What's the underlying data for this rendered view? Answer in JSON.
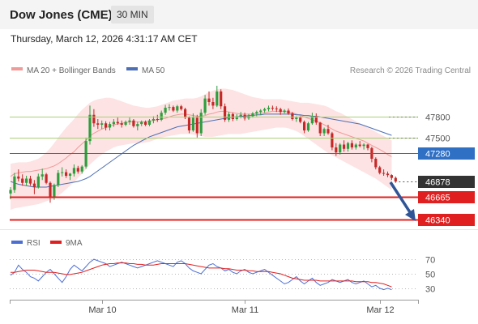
{
  "header": {
    "title": "Dow Jones (CME)",
    "timeframe": "30 MIN",
    "datetime": "Thursday, March 12, 2026 4:31:17 AM CET"
  },
  "legend": {
    "ma20_bb": "MA 20 + Bollinger Bands",
    "ma50": "MA 50",
    "credit": "Research © 2026 Trading Central",
    "rsi": "RSI",
    "rsi_ma": "9MA"
  },
  "colors": {
    "up": "#2e9e3e",
    "down": "#c62828",
    "ma20": "#f19a9a",
    "band_fill": "#fde3e3",
    "ma50": "#4d6fb5",
    "resistance": "#a9d17a",
    "pivot": "#2f6fc4",
    "support": "#e02020",
    "arrow": "#2f5597",
    "last_price_tag": "#333333"
  },
  "chart_data": {
    "type": "candlestick",
    "price_levels": [
      {
        "label": "47800",
        "value": 47800,
        "kind": "resistance"
      },
      {
        "label": "47500",
        "value": 47500,
        "kind": "resistance"
      },
      {
        "label": "47280",
        "value": 47280,
        "kind": "pivot"
      },
      {
        "label": "46878",
        "value": 46878,
        "kind": "last"
      },
      {
        "label": "46665",
        "value": 46665,
        "kind": "support"
      },
      {
        "label": "46340",
        "value": 46340,
        "kind": "support"
      }
    ],
    "price_range": [
      46240,
      48240
    ],
    "candles": [
      [
        46710,
        46800,
        46630,
        46760
      ],
      [
        46760,
        47000,
        46720,
        46950
      ],
      [
        46950,
        47050,
        46880,
        46920
      ],
      [
        46920,
        46980,
        46820,
        46860
      ],
      [
        46860,
        46960,
        46820,
        46920
      ],
      [
        46920,
        46960,
        46820,
        46850
      ],
      [
        46850,
        46900,
        46700,
        46800
      ],
      [
        46800,
        46990,
        46780,
        46950
      ],
      [
        46950,
        47060,
        46900,
        46980
      ],
      [
        46980,
        47000,
        46840,
        46860
      ],
      [
        46860,
        46880,
        46580,
        46650
      ],
      [
        46650,
        46850,
        46620,
        46830
      ],
      [
        46830,
        47040,
        46800,
        47000
      ],
      [
        47000,
        47080,
        46950,
        47010
      ],
      [
        47010,
        47050,
        46930,
        46960
      ],
      [
        46960,
        47000,
        46900,
        46990
      ],
      [
        46990,
        47120,
        46950,
        47070
      ],
      [
        47070,
        47100,
        46990,
        47020
      ],
      [
        47020,
        47110,
        46990,
        47090
      ],
      [
        47090,
        47500,
        47060,
        47450
      ],
      [
        47450,
        47950,
        47400,
        47820
      ],
      [
        47820,
        47900,
        47650,
        47700
      ],
      [
        47700,
        47760,
        47620,
        47680
      ],
      [
        47680,
        47740,
        47620,
        47700
      ],
      [
        47700,
        47730,
        47600,
        47640
      ],
      [
        47640,
        47720,
        47600,
        47690
      ],
      [
        47690,
        47760,
        47650,
        47720
      ],
      [
        47720,
        47780,
        47680,
        47700
      ],
      [
        47700,
        47740,
        47640,
        47680
      ],
      [
        47680,
        47740,
        47660,
        47720
      ],
      [
        47720,
        47780,
        47680,
        47740
      ],
      [
        47740,
        47760,
        47640,
        47660
      ],
      [
        47660,
        47720,
        47600,
        47690
      ],
      [
        47690,
        47740,
        47660,
        47720
      ],
      [
        47720,
        47740,
        47660,
        47680
      ],
      [
        47680,
        47760,
        47660,
        47740
      ],
      [
        47740,
        47800,
        47700,
        47760
      ],
      [
        47760,
        47820,
        47720,
        47750
      ],
      [
        47750,
        47880,
        47730,
        47850
      ],
      [
        47850,
        47960,
        47820,
        47920
      ],
      [
        47920,
        47970,
        47880,
        47930
      ],
      [
        47930,
        47950,
        47860,
        47880
      ],
      [
        47880,
        47960,
        47850,
        47940
      ],
      [
        47940,
        47960,
        47880,
        47900
      ],
      [
        47900,
        47920,
        47760,
        47780
      ],
      [
        47780,
        47800,
        47560,
        47600
      ],
      [
        47600,
        47840,
        47580,
        47780
      ],
      [
        47780,
        47820,
        47500,
        47560
      ],
      [
        47560,
        47900,
        47520,
        47850
      ],
      [
        47850,
        48100,
        47820,
        48050
      ],
      [
        48050,
        48150,
        47950,
        48000
      ],
      [
        48000,
        48060,
        47900,
        47950
      ],
      [
        47950,
        48230,
        47930,
        48150
      ],
      [
        48150,
        48180,
        47900,
        47940
      ],
      [
        47940,
        47980,
        47720,
        47750
      ],
      [
        47750,
        47860,
        47720,
        47830
      ],
      [
        47830,
        47850,
        47730,
        47760
      ],
      [
        47760,
        47830,
        47740,
        47800
      ],
      [
        47800,
        47860,
        47770,
        47820
      ],
      [
        47820,
        47850,
        47740,
        47770
      ],
      [
        47770,
        47830,
        47750,
        47800
      ],
      [
        47800,
        47860,
        47780,
        47840
      ],
      [
        47840,
        47880,
        47800,
        47860
      ],
      [
        47860,
        47900,
        47820,
        47880
      ],
      [
        47880,
        47920,
        47850,
        47900
      ],
      [
        47900,
        47950,
        47870,
        47920
      ],
      [
        47920,
        47950,
        47880,
        47910
      ],
      [
        47910,
        47940,
        47860,
        47900
      ],
      [
        47900,
        47920,
        47820,
        47860
      ],
      [
        47860,
        47900,
        47840,
        47880
      ],
      [
        47880,
        47910,
        47820,
        47840
      ],
      [
        47840,
        47860,
        47740,
        47760
      ],
      [
        47760,
        47800,
        47720,
        47780
      ],
      [
        47780,
        47800,
        47700,
        47720
      ],
      [
        47720,
        47740,
        47560,
        47600
      ],
      [
        47600,
        47720,
        47580,
        47700
      ],
      [
        47700,
        47850,
        47680,
        47800
      ],
      [
        47800,
        47840,
        47680,
        47710
      ],
      [
        47710,
        47720,
        47520,
        47560
      ],
      [
        47560,
        47640,
        47520,
        47620
      ],
      [
        47620,
        47680,
        47540,
        47560
      ],
      [
        47560,
        47580,
        47320,
        47360
      ],
      [
        47360,
        47420,
        47240,
        47290
      ],
      [
        47290,
        47420,
        47260,
        47400
      ],
      [
        47400,
        47460,
        47300,
        47340
      ],
      [
        47340,
        47440,
        47300,
        47420
      ],
      [
        47420,
        47460,
        47330,
        47360
      ],
      [
        47360,
        47420,
        47330,
        47400
      ],
      [
        47400,
        47450,
        47360,
        47380
      ],
      [
        47380,
        47420,
        47330,
        47400
      ],
      [
        47400,
        47410,
        47320,
        47350
      ],
      [
        47350,
        47370,
        47150,
        47200
      ],
      [
        47200,
        47220,
        47050,
        47080
      ],
      [
        47080,
        47100,
        46980,
        47000
      ],
      [
        47000,
        47050,
        46960,
        46990
      ],
      [
        46990,
        47020,
        46940,
        46970
      ],
      [
        46970,
        46980,
        46900,
        46930
      ],
      [
        46930,
        46950,
        46860,
        46878
      ]
    ],
    "ma20": [
      46950,
      46990,
      47000,
      47010,
      47020,
      47020,
      47030,
      47040,
      47050,
      47060,
      47080,
      47100,
      47130,
      47170,
      47210,
      47260,
      47300,
      47360,
      47410,
      47460,
      47520,
      47560,
      47590,
      47620,
      47640,
      47660,
      47680,
      47690,
      47700,
      47710,
      47720,
      47720,
      47720,
      47720,
      47720,
      47730,
      47740,
      47750,
      47760,
      47770,
      47790,
      47810,
      47820,
      47830,
      47830,
      47820,
      47810,
      47800,
      47800,
      47810,
      47830,
      47840,
      47860,
      47870,
      47870,
      47860,
      47850,
      47840,
      47830,
      47830,
      47830,
      47830,
      47840,
      47840,
      47850,
      47860,
      47870,
      47870,
      47870,
      47870,
      47860,
      47850,
      47830,
      47810,
      47790,
      47770,
      47750,
      47730,
      47710,
      47680,
      47650,
      47620,
      47590,
      47570,
      47550,
      47530,
      47510,
      47490,
      47470,
      47450,
      47420,
      47390,
      47360,
      47330,
      47300,
      47260,
      47230
    ],
    "bb_upper": [
      47130,
      47140,
      47150,
      47150,
      47150,
      47160,
      47180,
      47200,
      47240,
      47290,
      47350,
      47420,
      47500,
      47570,
      47640,
      47700,
      47760,
      47830,
      47890,
      47940,
      47990,
      48020,
      48040,
      48050,
      48060,
      48060,
      48050,
      48030,
      48010,
      47990,
      47970,
      47950,
      47940,
      47930,
      47920,
      47920,
      47930,
      47940,
      47960,
      47980,
      48000,
      48020,
      48030,
      48040,
      48050,
      48050,
      48050,
      48060,
      48080,
      48110,
      48140,
      48160,
      48180,
      48190,
      48190,
      48180,
      48170,
      48150,
      48130,
      48110,
      48090,
      48070,
      48060,
      48050,
      48040,
      48040,
      48040,
      48040,
      48040,
      48030,
      48020,
      48010,
      48000,
      47990,
      47990,
      47990,
      47980,
      47970,
      47960,
      47950,
      47930,
      47900,
      47870,
      47850,
      47820,
      47790,
      47760,
      47730,
      47700,
      47670,
      47640,
      47610,
      47580,
      47550,
      47520,
      47490,
      47460
    ],
    "bb_lower": [
      46480,
      46500,
      46510,
      46520,
      46530,
      46540,
      46550,
      46560,
      46580,
      46600,
      46620,
      46640,
      46680,
      46720,
      46770,
      46820,
      46870,
      46930,
      46990,
      47050,
      47120,
      47170,
      47220,
      47260,
      47300,
      47330,
      47360,
      47380,
      47390,
      47400,
      47410,
      47420,
      47420,
      47420,
      47430,
      47440,
      47460,
      47480,
      47500,
      47510,
      47520,
      47530,
      47540,
      47550,
      47550,
      47550,
      47540,
      47530,
      47520,
      47510,
      47510,
      47510,
      47520,
      47530,
      47540,
      47550,
      47550,
      47550,
      47550,
      47560,
      47570,
      47580,
      47590,
      47600,
      47610,
      47620,
      47630,
      47640,
      47640,
      47640,
      47630,
      47610,
      47590,
      47560,
      47520,
      47480,
      47440,
      47400,
      47360,
      47320,
      47280,
      47250,
      47220,
      47190,
      47160,
      47130,
      47100,
      47070,
      47040,
      47010,
      46980,
      46950,
      46920,
      46880,
      46840,
      46800,
      46760
    ],
    "ma50": [
      46880,
      46860,
      46840,
      46830,
      46820,
      46810,
      46800,
      46800,
      46800,
      46800,
      46810,
      46820,
      46830,
      46840,
      46850,
      46860,
      46870,
      46880,
      46900,
      46920,
      46950,
      46990,
      47030,
      47070,
      47110,
      47150,
      47190,
      47230,
      47270,
      47310,
      47350,
      47390,
      47420,
      47450,
      47480,
      47510,
      47530,
      47550,
      47570,
      47590,
      47610,
      47630,
      47650,
      47660,
      47670,
      47680,
      47690,
      47700,
      47710,
      47720,
      47730,
      47740,
      47750,
      47760,
      47770,
      47780,
      47790,
      47790,
      47800,
      47800,
      47810,
      47810,
      47820,
      47820,
      47830,
      47830,
      47830,
      47830,
      47830,
      47830,
      47830,
      47830,
      47820,
      47820,
      47810,
      47810,
      47800,
      47800,
      47790,
      47780,
      47770,
      47760,
      47750,
      47740,
      47730,
      47720,
      47710,
      47700,
      47690,
      47670,
      47650,
      47630,
      47610,
      47590,
      47570,
      47550,
      47530
    ],
    "rsi": {
      "ticks": [
        70,
        50,
        30
      ],
      "range": [
        22,
        78
      ],
      "rsi": [
        48,
        52,
        62,
        56,
        52,
        46,
        44,
        40,
        46,
        52,
        56,
        50,
        44,
        38,
        46,
        56,
        62,
        58,
        54,
        60,
        66,
        70,
        68,
        66,
        64,
        60,
        62,
        64,
        66,
        64,
        62,
        60,
        58,
        60,
        62,
        64,
        66,
        68,
        66,
        64,
        62,
        60,
        66,
        68,
        64,
        58,
        54,
        52,
        50,
        56,
        62,
        64,
        60,
        58,
        54,
        56,
        52,
        50,
        54,
        56,
        52,
        50,
        52,
        54,
        56,
        52,
        48,
        44,
        40,
        36,
        38,
        42,
        46,
        40,
        36,
        40,
        44,
        38,
        34,
        36,
        38,
        42,
        40,
        38,
        40,
        42,
        38,
        36,
        38,
        40,
        36,
        32,
        34,
        30,
        28,
        30,
        28
      ],
      "rsi_ma": [
        52,
        52,
        53,
        54,
        55,
        55,
        55,
        54,
        53,
        52,
        52,
        52,
        51,
        50,
        49,
        49,
        50,
        51,
        52,
        54,
        56,
        58,
        60,
        62,
        63,
        64,
        64,
        65,
        65,
        65,
        64,
        64,
        63,
        63,
        62,
        62,
        62,
        63,
        64,
        64,
        64,
        64,
        64,
        64,
        64,
        63,
        62,
        61,
        60,
        59,
        58,
        58,
        58,
        58,
        57,
        57,
        56,
        55,
        55,
        55,
        54,
        54,
        53,
        53,
        53,
        53,
        52,
        51,
        50,
        48,
        46,
        44,
        43,
        42,
        41,
        41,
        41,
        41,
        40,
        40,
        40,
        40,
        40,
        40,
        40,
        40,
        40,
        39,
        39,
        39,
        39,
        38,
        38,
        37,
        36,
        34,
        32
      ]
    },
    "x_ticks": [
      {
        "label": "Mar 10",
        "index": 23
      },
      {
        "label": "Mar 11",
        "index": 59
      },
      {
        "label": "Mar 12",
        "index": 93
      }
    ]
  }
}
